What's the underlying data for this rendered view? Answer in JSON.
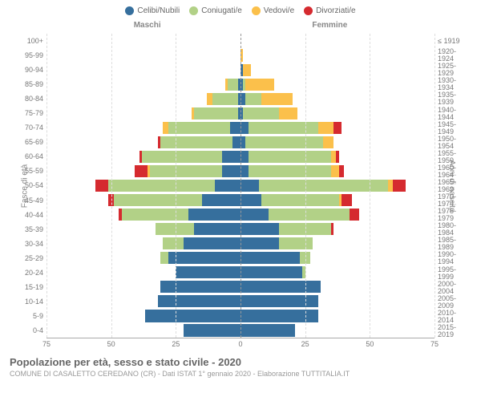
{
  "legend": [
    {
      "label": "Celibi/Nubili",
      "color": "#366f9d"
    },
    {
      "label": "Coniugati/e",
      "color": "#b2d187"
    },
    {
      "label": "Vedovi/e",
      "color": "#fbc04b"
    },
    {
      "label": "Divorziati/e",
      "color": "#d52a2f"
    }
  ],
  "labels": {
    "male": "Maschi",
    "female": "Femmine",
    "y_left": "Fasce di età",
    "y_right": "Anni di nascita"
  },
  "colors": {
    "single": "#366f9d",
    "married": "#b2d187",
    "widowed": "#fbc04b",
    "divorced": "#d52a2f",
    "grid": "#dddddd",
    "center_line": "#999999"
  },
  "x": {
    "max": 75,
    "ticks": [
      75,
      50,
      25,
      0,
      25,
      50,
      75
    ]
  },
  "age_bands": [
    {
      "age": "100+",
      "birth": "≤ 1919",
      "m": [
        0,
        0,
        0,
        0
      ],
      "f": [
        0,
        0,
        0,
        0
      ]
    },
    {
      "age": "95-99",
      "birth": "1920-1924",
      "m": [
        0,
        0,
        0,
        0
      ],
      "f": [
        0,
        0,
        1,
        0
      ]
    },
    {
      "age": "90-94",
      "birth": "1925-1929",
      "m": [
        0,
        0,
        0,
        0
      ],
      "f": [
        1,
        0,
        3,
        0
      ]
    },
    {
      "age": "85-89",
      "birth": "1930-1934",
      "m": [
        1,
        4,
        1,
        0
      ],
      "f": [
        1,
        1,
        11,
        0
      ]
    },
    {
      "age": "80-84",
      "birth": "1935-1939",
      "m": [
        1,
        10,
        2,
        0
      ],
      "f": [
        2,
        6,
        12,
        0
      ]
    },
    {
      "age": "75-79",
      "birth": "1940-1944",
      "m": [
        1,
        17,
        1,
        0
      ],
      "f": [
        1,
        14,
        7,
        0
      ]
    },
    {
      "age": "70-74",
      "birth": "1945-1949",
      "m": [
        4,
        24,
        2,
        0
      ],
      "f": [
        3,
        27,
        6,
        3
      ]
    },
    {
      "age": "65-69",
      "birth": "1950-1954",
      "m": [
        3,
        28,
        0,
        1
      ],
      "f": [
        2,
        30,
        4,
        0
      ]
    },
    {
      "age": "60-64",
      "birth": "1955-1959",
      "m": [
        7,
        31,
        0,
        1
      ],
      "f": [
        3,
        32,
        2,
        1
      ]
    },
    {
      "age": "55-59",
      "birth": "1960-1964",
      "m": [
        7,
        28,
        1,
        5
      ],
      "f": [
        3,
        32,
        3,
        2
      ]
    },
    {
      "age": "50-54",
      "birth": "1965-1969",
      "m": [
        10,
        41,
        0,
        5
      ],
      "f": [
        7,
        50,
        2,
        5
      ]
    },
    {
      "age": "45-49",
      "birth": "1970-1974",
      "m": [
        15,
        34,
        0,
        2
      ],
      "f": [
        8,
        30,
        1,
        4
      ]
    },
    {
      "age": "40-44",
      "birth": "1975-1979",
      "m": [
        20,
        26,
        0,
        1
      ],
      "f": [
        11,
        31,
        0,
        4
      ]
    },
    {
      "age": "35-39",
      "birth": "1980-1984",
      "m": [
        18,
        15,
        0,
        0
      ],
      "f": [
        15,
        20,
        0,
        1
      ]
    },
    {
      "age": "30-34",
      "birth": "1985-1989",
      "m": [
        22,
        8,
        0,
        0
      ],
      "f": [
        15,
        13,
        0,
        0
      ]
    },
    {
      "age": "25-29",
      "birth": "1990-1994",
      "m": [
        28,
        3,
        0,
        0
      ],
      "f": [
        23,
        4,
        0,
        0
      ]
    },
    {
      "age": "20-24",
      "birth": "1995-1999",
      "m": [
        25,
        0,
        0,
        0
      ],
      "f": [
        24,
        1,
        0,
        0
      ]
    },
    {
      "age": "15-19",
      "birth": "2000-2004",
      "m": [
        31,
        0,
        0,
        0
      ],
      "f": [
        31,
        0,
        0,
        0
      ]
    },
    {
      "age": "10-14",
      "birth": "2005-2009",
      "m": [
        32,
        0,
        0,
        0
      ],
      "f": [
        30,
        0,
        0,
        0
      ]
    },
    {
      "age": "5-9",
      "birth": "2010-2014",
      "m": [
        37,
        0,
        0,
        0
      ],
      "f": [
        30,
        0,
        0,
        0
      ]
    },
    {
      "age": "0-4",
      "birth": "2015-2019",
      "m": [
        22,
        0,
        0,
        0
      ],
      "f": [
        21,
        0,
        0,
        0
      ]
    }
  ],
  "footer": {
    "title": "Popolazione per età, sesso e stato civile - 2020",
    "subtitle": "COMUNE DI CASALETTO CEREDANO (CR) - Dati ISTAT 1° gennaio 2020 - Elaborazione TUTTITALIA.IT"
  }
}
